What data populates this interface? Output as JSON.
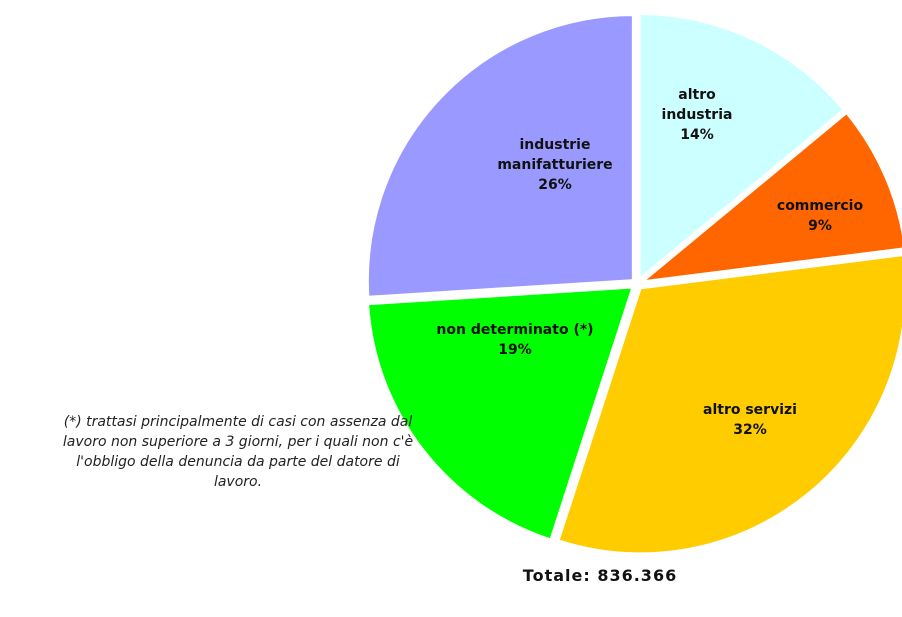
{
  "chart_data": {
    "type": "pie",
    "categories": [
      "altro industria",
      "commercio",
      "altro servizi",
      "non determinato (*)",
      "industrie manifatturiere"
    ],
    "values": [
      14,
      9,
      32,
      19,
      26
    ],
    "value_labels": [
      "14%",
      "9%",
      "32%",
      "19%",
      "26%"
    ],
    "colors": [
      "#ccffff",
      "#ff6600",
      "#ffcc00",
      "#00ff00",
      "#9999ff"
    ],
    "note": "(*) trattasi principalmente di casi con assenza dal lavoro non superiore a 3 giorni, per i quali non c'è l'obbligo della denuncia da parte del datore di lavoro.",
    "total_label": "Totale: 836.366"
  }
}
